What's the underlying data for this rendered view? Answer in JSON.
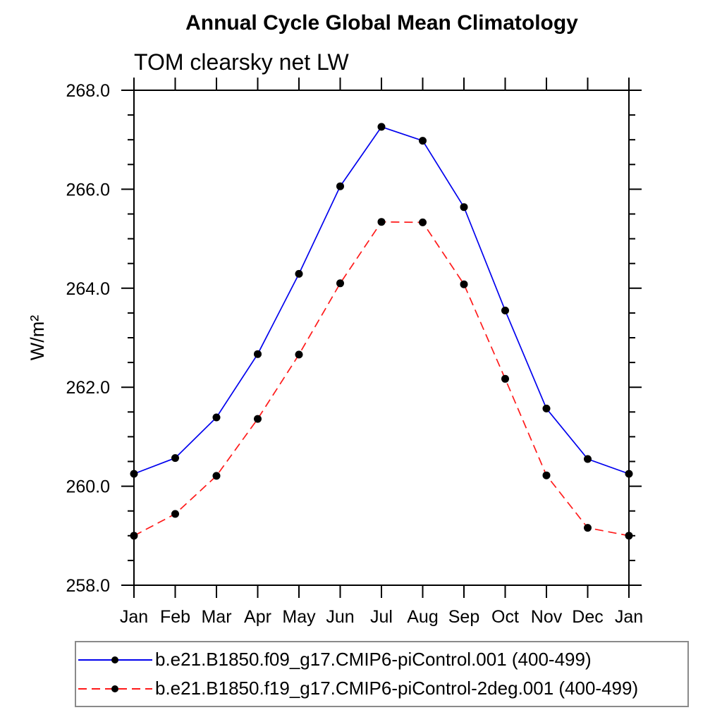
{
  "chart_data": {
    "type": "line",
    "title": "Annual Cycle Global Mean Climatology",
    "subtitle": "TOM clearsky net LW",
    "ylabel": "W/m²",
    "x_categories": [
      "Jan",
      "Feb",
      "Mar",
      "Apr",
      "May",
      "Jun",
      "Jul",
      "Aug",
      "Sep",
      "Oct",
      "Nov",
      "Dec",
      "Jan"
    ],
    "y_axis": {
      "min": 258.0,
      "max": 268.0,
      "major_step": 2.0,
      "minor_step": 0.5,
      "tick_labels": [
        "258.0",
        "260.0",
        "262.0",
        "264.0",
        "266.0",
        "268.0"
      ]
    },
    "grid": false,
    "legend_position": "bottom-left",
    "axis_color": "#000000",
    "series": [
      {
        "name": "b.e21.B1850.f09_g17.CMIP6-piControl.001 (400-499)",
        "color": "#0000ee",
        "line_style": "solid",
        "marker": "filled-circle",
        "marker_color": "#000000",
        "values": [
          260.25,
          260.57,
          261.39,
          262.67,
          264.29,
          266.06,
          267.26,
          266.98,
          265.64,
          263.55,
          261.57,
          260.55,
          260.25
        ]
      },
      {
        "name": "b.e21.B1850.f19_g17.CMIP6-piControl-2deg.001 (400-499)",
        "color": "#ff1a1a",
        "line_style": "dashed",
        "marker": "filled-circle",
        "marker_color": "#000000",
        "values": [
          259.0,
          259.44,
          260.21,
          261.36,
          262.66,
          264.1,
          265.34,
          265.33,
          264.08,
          262.17,
          260.22,
          259.16,
          259.0
        ]
      }
    ]
  }
}
